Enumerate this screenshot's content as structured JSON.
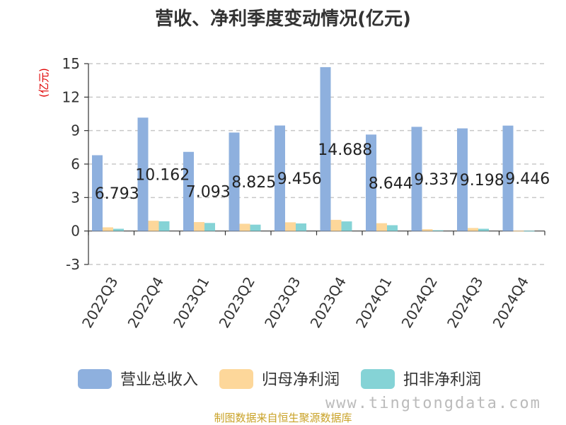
{
  "chart_data": {
    "type": "bar",
    "title": "营收、净利季度变动情况(亿元)",
    "ylabel": "(亿元)",
    "xlabel": "",
    "ylim": [
      -3,
      15
    ],
    "yticks": [
      -3,
      0,
      3,
      6,
      9,
      12,
      15
    ],
    "grid": true,
    "legend_position": "bottom",
    "categories": [
      "2022Q3",
      "2022Q4",
      "2023Q1",
      "2023Q2",
      "2023Q3",
      "2023Q4",
      "2024Q1",
      "2024Q2",
      "2024Q3",
      "2024Q4"
    ],
    "series": [
      {
        "name": "营业总收入",
        "color": "#8eb0de",
        "values": [
          6.793,
          10.162,
          7.093,
          8.825,
          9.456,
          14.688,
          8.644,
          9.337,
          9.198,
          9.446
        ],
        "labels": [
          "6.793",
          "10.162",
          "7.093",
          "8.825",
          "9.456",
          "14.688",
          "8.644",
          "9.337",
          "9.198",
          "9.446"
        ]
      },
      {
        "name": "归母净利润",
        "color": "#fdd79a",
        "values": [
          0.33,
          0.92,
          0.8,
          0.65,
          0.78,
          1.0,
          0.7,
          0.16,
          0.27,
          0.02
        ]
      },
      {
        "name": "扣非净利润",
        "color": "#85d3d6",
        "values": [
          0.2,
          0.87,
          0.72,
          0.57,
          0.68,
          0.86,
          0.52,
          0.07,
          0.2,
          0.02
        ]
      }
    ]
  },
  "footer": {
    "source": "制图数据来自恒生聚源数据库",
    "watermark": "www.tingtongdata.com"
  }
}
